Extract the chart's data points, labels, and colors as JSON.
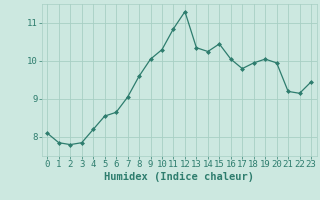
{
  "x": [
    0,
    1,
    2,
    3,
    4,
    5,
    6,
    7,
    8,
    9,
    10,
    11,
    12,
    13,
    14,
    15,
    16,
    17,
    18,
    19,
    20,
    21,
    22,
    23
  ],
  "y": [
    8.1,
    7.85,
    7.8,
    7.85,
    8.2,
    8.55,
    8.65,
    9.05,
    9.6,
    10.05,
    10.3,
    10.85,
    11.3,
    10.35,
    10.25,
    10.45,
    10.05,
    9.8,
    9.95,
    10.05,
    9.95,
    9.2,
    9.15,
    9.45
  ],
  "line_color": "#2e7d6e",
  "marker": "D",
  "marker_size": 2.0,
  "bg_color": "#cce8e0",
  "grid_color": "#a8cfc4",
  "xlabel": "Humidex (Indice chaleur)",
  "ylim": [
    7.5,
    11.5
  ],
  "xlim": [
    -0.5,
    23.5
  ],
  "yticks": [
    8,
    9,
    10,
    11
  ],
  "xticks": [
    0,
    1,
    2,
    3,
    4,
    5,
    6,
    7,
    8,
    9,
    10,
    11,
    12,
    13,
    14,
    15,
    16,
    17,
    18,
    19,
    20,
    21,
    22,
    23
  ],
  "tick_color": "#2e7d6e",
  "label_color": "#2e7d6e",
  "tick_fontsize": 6.5,
  "xlabel_fontsize": 7.5
}
